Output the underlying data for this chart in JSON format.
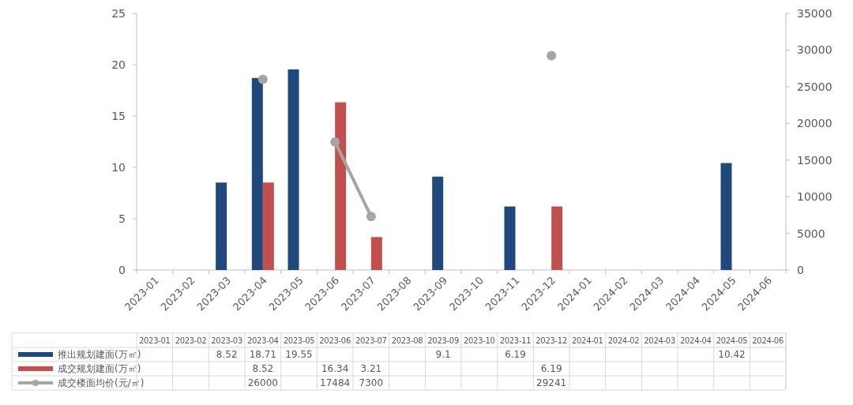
{
  "chart_data": {
    "type": "bar",
    "categories": [
      "2023-01",
      "2023-02",
      "2023-03",
      "2023-04",
      "2023-05",
      "2023-06",
      "2023-07",
      "2023-08",
      "2023-09",
      "2023-10",
      "2023-11",
      "2023-12",
      "2024-01",
      "2024-02",
      "2024-03",
      "2024-04",
      "2024-05",
      "2024-06"
    ],
    "series": [
      {
        "name": "推出规划建面(万㎡)",
        "color": "#1f497d",
        "values": [
          null,
          null,
          8.52,
          18.71,
          19.55,
          null,
          null,
          null,
          9.1,
          null,
          6.19,
          null,
          null,
          null,
          null,
          null,
          10.42,
          null
        ]
      },
      {
        "name": "成交规划建面(万㎡)",
        "color": "#c0504d",
        "values": [
          null,
          null,
          null,
          8.52,
          null,
          16.34,
          3.21,
          null,
          null,
          null,
          null,
          6.19,
          null,
          null,
          null,
          null,
          null,
          null
        ]
      },
      {
        "name": "成交楼面均价(元/㎡)",
        "type": "line",
        "axis": "y2",
        "color": "#a5a5a5",
        "marker": "circle",
        "values": [
          null,
          null,
          null,
          26000,
          null,
          17484,
          7300,
          null,
          null,
          null,
          null,
          29241,
          null,
          null,
          null,
          null,
          null,
          null
        ]
      }
    ],
    "ylim": [
      0,
      25
    ],
    "yticks": [
      0,
      5,
      10,
      15,
      20,
      25
    ],
    "y2lim": [
      0,
      35000
    ],
    "y2ticks": [
      0,
      5000,
      10000,
      15000,
      20000,
      25000,
      30000,
      35000
    ],
    "data_labels": true,
    "legend": "bottom",
    "grid": false
  }
}
